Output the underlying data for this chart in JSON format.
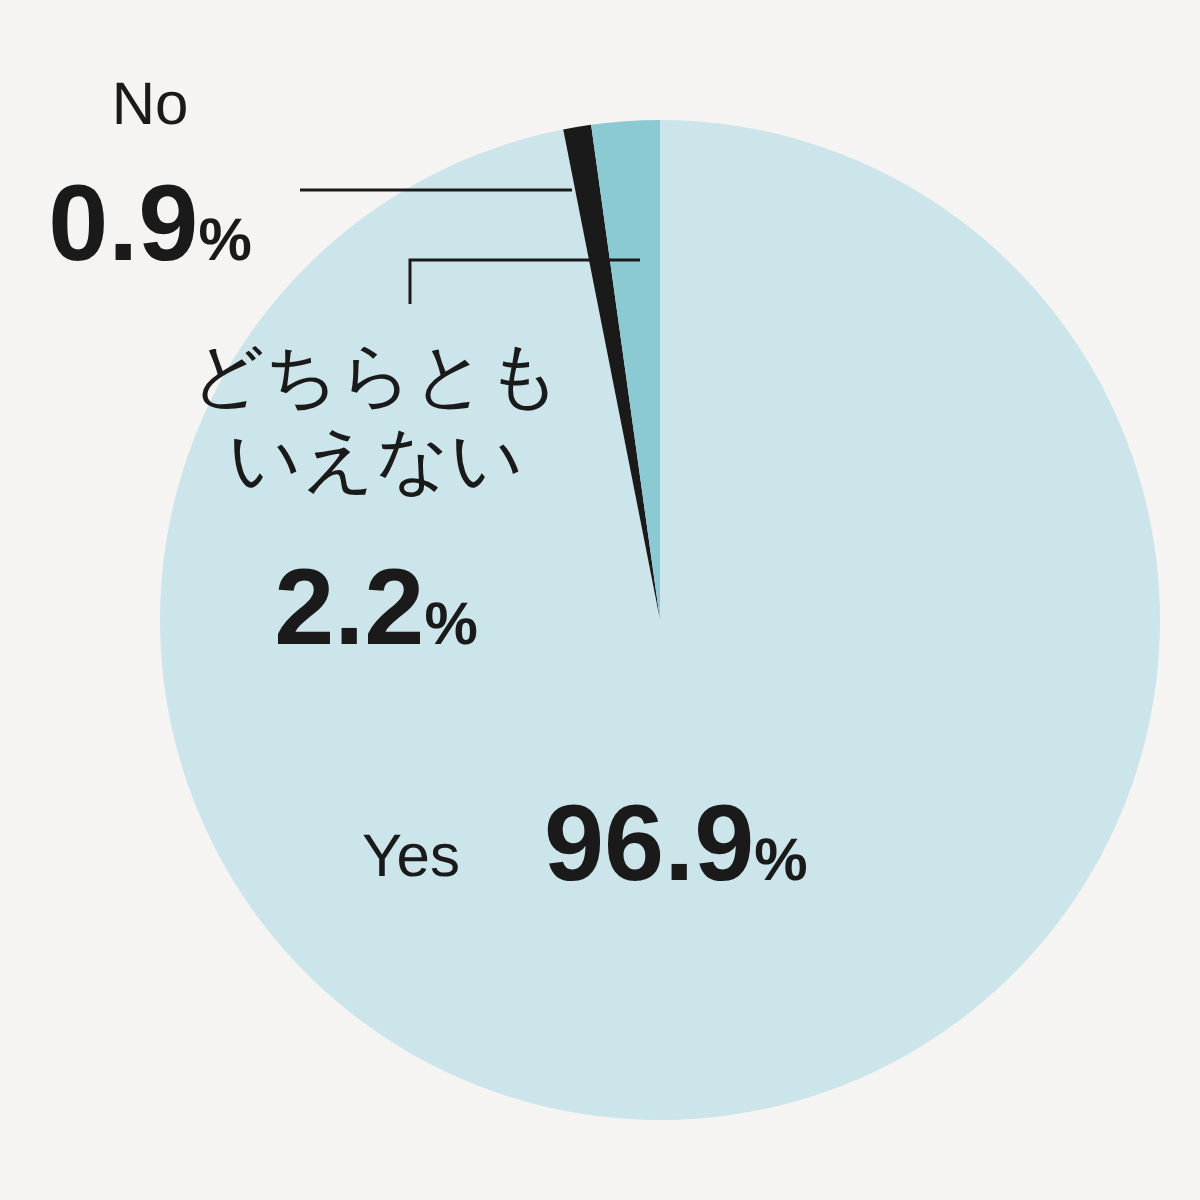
{
  "chart_data": {
    "type": "pie",
    "categories": [
      "Yes",
      "No",
      "どちらともいえない"
    ],
    "values": [
      96.9,
      0.9,
      2.2
    ],
    "colors": [
      "#cce5ea",
      "#1a1a1a",
      "#8ccad3"
    ],
    "value_labels": [
      "96.9%",
      "0.9%",
      "2.2%"
    ]
  }
}
